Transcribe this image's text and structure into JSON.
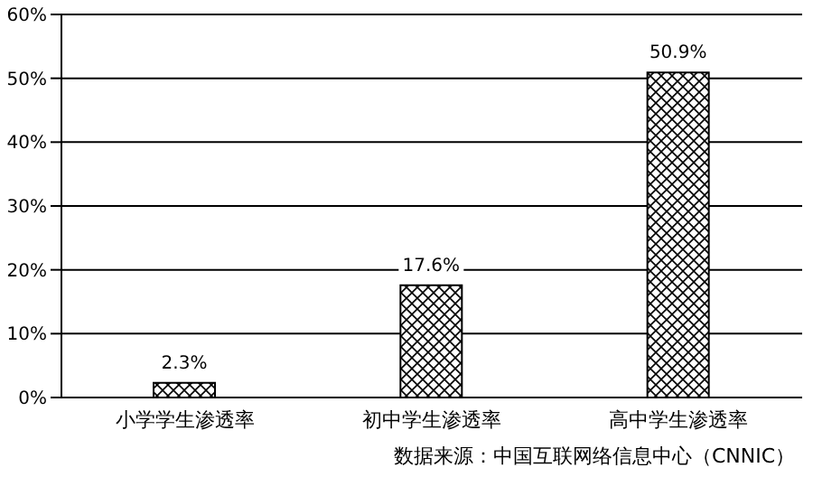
{
  "chart_data": {
    "type": "bar",
    "categories": [
      "小学学生渗透率",
      "初中学生渗透率",
      "高中学生渗透率"
    ],
    "values": [
      2.3,
      17.6,
      50.9
    ],
    "value_labels": [
      "2.3%",
      "17.6%",
      "50.9%"
    ],
    "color": "#000000",
    "ylim": [
      0,
      60
    ],
    "yticks": [
      {
        "value": 0,
        "label": "0%"
      },
      {
        "value": 10,
        "label": "10%"
      },
      {
        "value": 20,
        "label": "20%"
      },
      {
        "value": 30,
        "label": "30%"
      },
      {
        "value": 40,
        "label": "40%"
      },
      {
        "value": 50,
        "label": "50%"
      },
      {
        "value": 60,
        "label": "60%"
      }
    ],
    "grid": "y",
    "annotations": [
      "数据来源：中国互联网络信息中心（CNNIC）"
    ]
  }
}
